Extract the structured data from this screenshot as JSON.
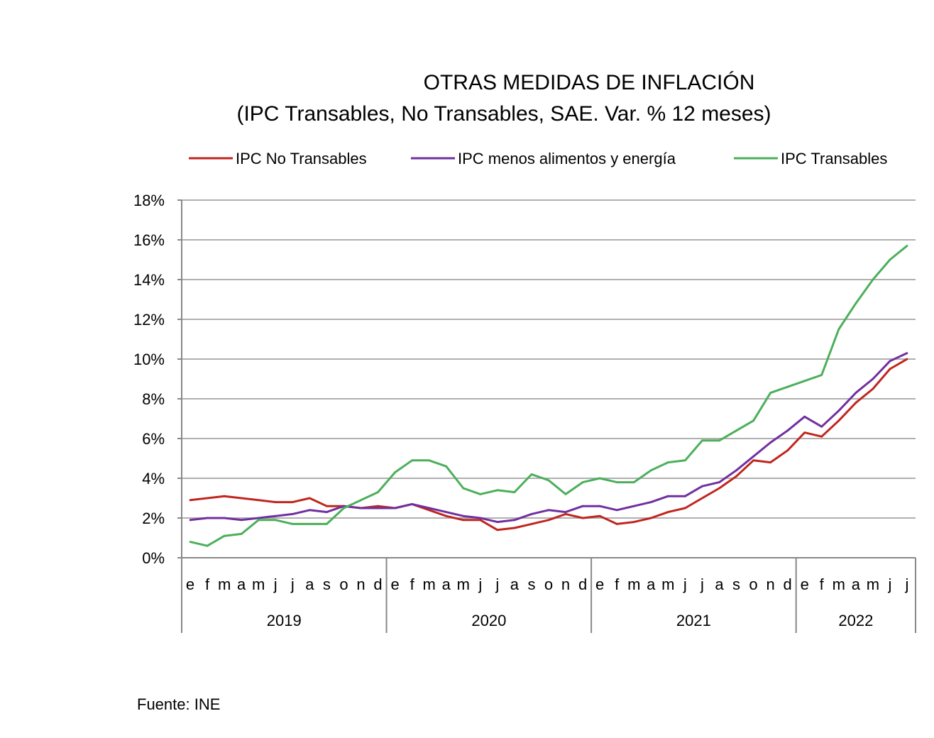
{
  "chart_data": {
    "type": "line",
    "title": "OTRAS MEDIDAS DE INFLACIÓN",
    "subtitle": "(IPC Transables, No Transables, SAE.  Var. % 12 meses)",
    "xlabel": "",
    "ylabel": "",
    "ylim": [
      0,
      18
    ],
    "y_ticks": [
      0,
      2,
      4,
      6,
      8,
      10,
      12,
      14,
      16,
      18
    ],
    "y_tick_labels": [
      "0%",
      "2%",
      "4%",
      "6%",
      "8%",
      "10%",
      "12%",
      "14%",
      "16%",
      "18%"
    ],
    "grid": true,
    "legend_position": "top",
    "years": [
      {
        "label": "2019",
        "months": [
          "e",
          "f",
          "m",
          "a",
          "m",
          "j",
          "j",
          "a",
          "s",
          "o",
          "n",
          "d"
        ]
      },
      {
        "label": "2020",
        "months": [
          "e",
          "f",
          "m",
          "a",
          "m",
          "j",
          "j",
          "a",
          "s",
          "o",
          "n",
          "d"
        ]
      },
      {
        "label": "2021",
        "months": [
          "e",
          "f",
          "m",
          "a",
          "m",
          "j",
          "j",
          "a",
          "s",
          "o",
          "n",
          "d"
        ]
      },
      {
        "label": "2022",
        "months": [
          "e",
          "f",
          "m",
          "a",
          "m",
          "j",
          "j"
        ]
      }
    ],
    "series": [
      {
        "name": "IPC No Transables",
        "color": "#C0261F",
        "values": [
          2.9,
          3.0,
          3.1,
          3.0,
          2.9,
          2.8,
          2.8,
          3.0,
          2.6,
          2.6,
          2.5,
          2.6,
          2.5,
          2.7,
          2.4,
          2.1,
          1.9,
          1.9,
          1.4,
          1.5,
          1.7,
          1.9,
          2.2,
          2.0,
          2.1,
          1.7,
          1.8,
          2.0,
          2.3,
          2.5,
          3.0,
          3.5,
          4.1,
          4.9,
          4.8,
          5.4,
          6.3,
          6.1,
          6.9,
          7.8,
          8.5,
          9.5,
          10.0
        ]
      },
      {
        "name": "IPC menos alimentos y energía",
        "color": "#7030A0",
        "values": [
          1.9,
          2.0,
          2.0,
          1.9,
          2.0,
          2.1,
          2.2,
          2.4,
          2.3,
          2.6,
          2.5,
          2.5,
          2.5,
          2.7,
          2.5,
          2.3,
          2.1,
          2.0,
          1.8,
          1.9,
          2.2,
          2.4,
          2.3,
          2.6,
          2.6,
          2.4,
          2.6,
          2.8,
          3.1,
          3.1,
          3.6,
          3.8,
          4.4,
          5.1,
          5.8,
          6.4,
          7.1,
          6.6,
          7.4,
          8.3,
          9.0,
          9.9,
          10.3
        ]
      },
      {
        "name": "IPC Transables",
        "color": "#4CAF5A",
        "values": [
          0.8,
          0.6,
          1.1,
          1.2,
          1.9,
          1.9,
          1.7,
          1.7,
          1.7,
          2.5,
          2.9,
          3.3,
          4.3,
          4.9,
          4.9,
          4.6,
          3.5,
          3.2,
          3.4,
          3.3,
          4.2,
          3.9,
          3.2,
          3.8,
          4.0,
          3.8,
          3.8,
          4.4,
          4.8,
          4.9,
          5.9,
          5.9,
          6.4,
          6.9,
          8.3,
          8.6,
          8.9,
          9.2,
          11.5,
          12.8,
          14.0,
          15.0,
          15.7
        ]
      }
    ],
    "source": "Fuente: INE"
  }
}
